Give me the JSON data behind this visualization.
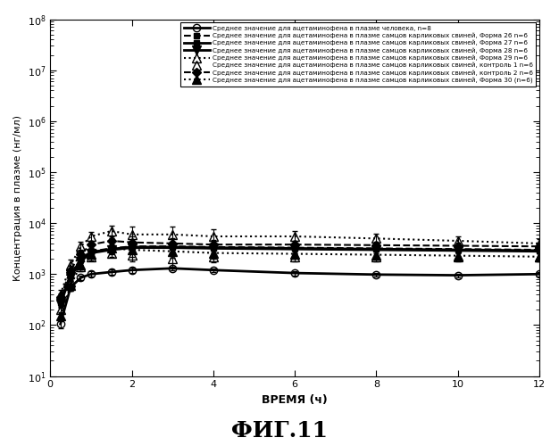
{
  "title": "ФИГ.11",
  "xlabel": "ВРЕМЯ (ч)",
  "ylabel": "Концентрация в плазме (нг/мл)",
  "xlim": [
    0,
    12
  ],
  "ylim_log": [
    10,
    100000000.0
  ],
  "xticks": [
    0,
    2,
    4,
    6,
    8,
    10,
    12
  ],
  "legend_entries": [
    "Среднее значение для ацетаминофена в плазме человека, n=8",
    "Среднее значение для ацетаминофена в плазме самцов карликовых свиней, Форма 26 n=6",
    "Среднее значение для ацетаминофена в плазме самцов карликовых свиней, Форма 27 n=6",
    "Среднее значение для ацетаминофена в плазме самцов карликовых свиней, Форма 28 n=6",
    "Среднее значение для ацетаминофена в плазме самцов карликовых свиней, Форма 29 n=6",
    "Среднее значение для ацетаминофена в плазме самцов карликовых свиней, контроль 1 n=6",
    "Среднее значение для ацетаминофена в плазме самцов карликовых свиней, контроль 2 n=6",
    "Среднее значение для ацетаминофена в плазме самцов карликовых свиней, Форма 30 (n=6)"
  ],
  "series": {
    "human": {
      "x": [
        0.25,
        0.5,
        0.75,
        1.0,
        1.5,
        2.0,
        3.0,
        4.0,
        6.0,
        8.0,
        10.0,
        12.0
      ],
      "y": [
        105,
        550,
        850,
        1000,
        1100,
        1200,
        1300,
        1200,
        1050,
        980,
        950,
        1000
      ],
      "yerr": [
        20,
        80,
        100,
        120,
        130,
        140,
        120,
        110,
        100,
        90,
        80,
        90
      ],
      "linestyle": "solid",
      "marker": "o",
      "linewidth": 2.0,
      "markersize": 6,
      "fillstyle": "none",
      "dashes": []
    },
    "form26": {
      "x": [
        0.25,
        0.5,
        0.75,
        1.0,
        1.5,
        2.0,
        3.0,
        4.0,
        6.0,
        8.0,
        10.0,
        12.0
      ],
      "y": [
        300,
        1000,
        2000,
        2800,
        3200,
        3500,
        3500,
        3400,
        3300,
        3200,
        3100,
        3000
      ],
      "yerr": [
        50,
        200,
        300,
        400,
        500,
        400,
        350,
        300,
        350,
        300,
        250,
        300
      ],
      "linestyle": "dashed",
      "marker": "s",
      "linewidth": 1.5,
      "markersize": 5,
      "fillstyle": "full",
      "dashes": [
        4,
        2,
        4,
        2
      ]
    },
    "form27": {
      "x": [
        0.25,
        0.5,
        0.75,
        1.0,
        1.5,
        2.0,
        3.0,
        4.0,
        6.0,
        8.0,
        10.0,
        12.0
      ],
      "y": [
        280,
        950,
        1900,
        2700,
        3100,
        3400,
        3400,
        3300,
        3200,
        3100,
        3000,
        2900
      ],
      "yerr": [
        45,
        180,
        280,
        380,
        460,
        380,
        330,
        280,
        330,
        280,
        230,
        280
      ],
      "linestyle": "solid",
      "marker": "s",
      "linewidth": 2.0,
      "markersize": 5,
      "fillstyle": "full",
      "dashes": []
    },
    "form28": {
      "x": [
        0.25,
        0.5,
        0.75,
        1.0,
        1.5,
        2.0,
        3.0,
        4.0,
        6.0,
        8.0,
        10.0,
        12.0
      ],
      "y": [
        260,
        900,
        1800,
        2600,
        3000,
        3300,
        3300,
        3200,
        3100,
        3000,
        2900,
        2800
      ],
      "yerr": [
        40,
        160,
        260,
        360,
        440,
        360,
        310,
        260,
        310,
        260,
        210,
        260
      ],
      "linestyle": "solid",
      "marker": "v",
      "linewidth": 2.0,
      "markersize": 7,
      "fillstyle": "full",
      "dashes": [
        6,
        2,
        2,
        2
      ]
    },
    "form29": {
      "x": [
        0.25,
        0.5,
        0.75,
        1.0,
        1.5,
        2.0,
        3.0,
        4.0,
        6.0,
        8.0,
        10.0,
        12.0
      ],
      "y": [
        400,
        1500,
        3500,
        5500,
        7000,
        6000,
        6000,
        5500,
        5500,
        5000,
        4500,
        4000
      ],
      "yerr": [
        100,
        400,
        800,
        1200,
        2000,
        2500,
        2500,
        2000,
        1500,
        1200,
        1000,
        800
      ],
      "linestyle": "dotted",
      "marker": "^",
      "linewidth": 1.5,
      "markersize": 7,
      "fillstyle": "none",
      "dashes": [
        1,
        2
      ]
    },
    "control1": {
      "x": [
        0.25,
        0.5,
        0.75,
        1.0,
        1.5,
        2.0,
        3.0,
        4.0,
        6.0,
        8.0,
        10.0,
        12.0
      ],
      "y": [
        200,
        700,
        1400,
        2200,
        2600,
        2400,
        2000,
        2200,
        2200,
        2200,
        2200,
        2200
      ],
      "yerr": [
        30,
        150,
        250,
        350,
        400,
        600,
        600,
        500,
        400,
        400,
        400,
        400
      ],
      "linestyle": "none",
      "marker": "^",
      "linewidth": 0,
      "markersize": 7,
      "fillstyle": "none",
      "dashes": []
    },
    "control2": {
      "x": [
        0.25,
        0.5,
        0.75,
        1.0,
        1.5,
        2.0,
        3.0,
        4.0,
        6.0,
        8.0,
        10.0,
        12.0
      ],
      "y": [
        350,
        1200,
        2500,
        3800,
        4500,
        4200,
        4000,
        3800,
        3800,
        3700,
        3600,
        3500
      ],
      "yerr": [
        70,
        250,
        450,
        700,
        900,
        1200,
        1000,
        800,
        700,
        650,
        600,
        550
      ],
      "linestyle": "dashed",
      "marker": "D",
      "linewidth": 1.5,
      "markersize": 5,
      "fillstyle": "full",
      "dashes": [
        2,
        2
      ]
    },
    "form30": {
      "x": [
        0.25,
        0.5,
        0.75,
        1.0,
        1.5,
        2.0,
        3.0,
        4.0,
        6.0,
        8.0,
        10.0,
        12.0
      ],
      "y": [
        150,
        600,
        1500,
        2500,
        3200,
        3000,
        2800,
        2600,
        2500,
        2400,
        2300,
        2200
      ],
      "yerr": [
        30,
        120,
        280,
        480,
        700,
        800,
        700,
        600,
        500,
        450,
        400,
        350
      ],
      "linestyle": "dotted",
      "marker": "^",
      "linewidth": 1.5,
      "markersize": 7,
      "fillstyle": "full",
      "dashes": [
        1,
        2
      ]
    }
  }
}
